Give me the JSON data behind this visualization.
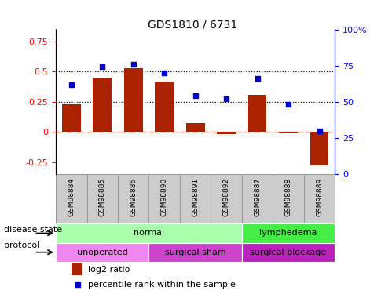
{
  "title": "GDS1810 / 6731",
  "samples": [
    "GSM98884",
    "GSM98885",
    "GSM98886",
    "GSM98890",
    "GSM98891",
    "GSM98892",
    "GSM98887",
    "GSM98888",
    "GSM98889"
  ],
  "log2_ratio": [
    0.23,
    0.45,
    0.53,
    0.42,
    0.07,
    -0.02,
    0.31,
    -0.01,
    -0.28
  ],
  "percentile_rank": [
    62,
    74,
    76,
    70,
    54,
    52,
    66,
    48,
    30
  ],
  "bar_color": "#aa2200",
  "dot_color": "#0000cc",
  "ylim_left": [
    -0.35,
    0.85
  ],
  "ylim_right": [
    0,
    100
  ],
  "yticks_left": [
    -0.25,
    0.0,
    0.25,
    0.5,
    0.75
  ],
  "yticks_right": [
    0,
    25,
    50,
    75,
    100
  ],
  "hlines": [
    0.25,
    0.5
  ],
  "disease_state": [
    {
      "label": "normal",
      "start": 0,
      "end": 6,
      "color": "#aaffaa"
    },
    {
      "label": "lymphedema",
      "start": 6,
      "end": 9,
      "color": "#44ee44"
    }
  ],
  "protocol": [
    {
      "label": "unoperated",
      "start": 0,
      "end": 3,
      "color": "#ee88ee"
    },
    {
      "label": "surgical sham",
      "start": 3,
      "end": 6,
      "color": "#cc44cc"
    },
    {
      "label": "surgical blockage",
      "start": 6,
      "end": 9,
      "color": "#bb22bb"
    }
  ],
  "legend_bar_label": "log2 ratio",
  "legend_dot_label": "percentile rank within the sample",
  "disease_state_label": "disease state",
  "protocol_label": "protocol",
  "xtick_bg_color": "#cccccc",
  "xtick_border_color": "#999999"
}
